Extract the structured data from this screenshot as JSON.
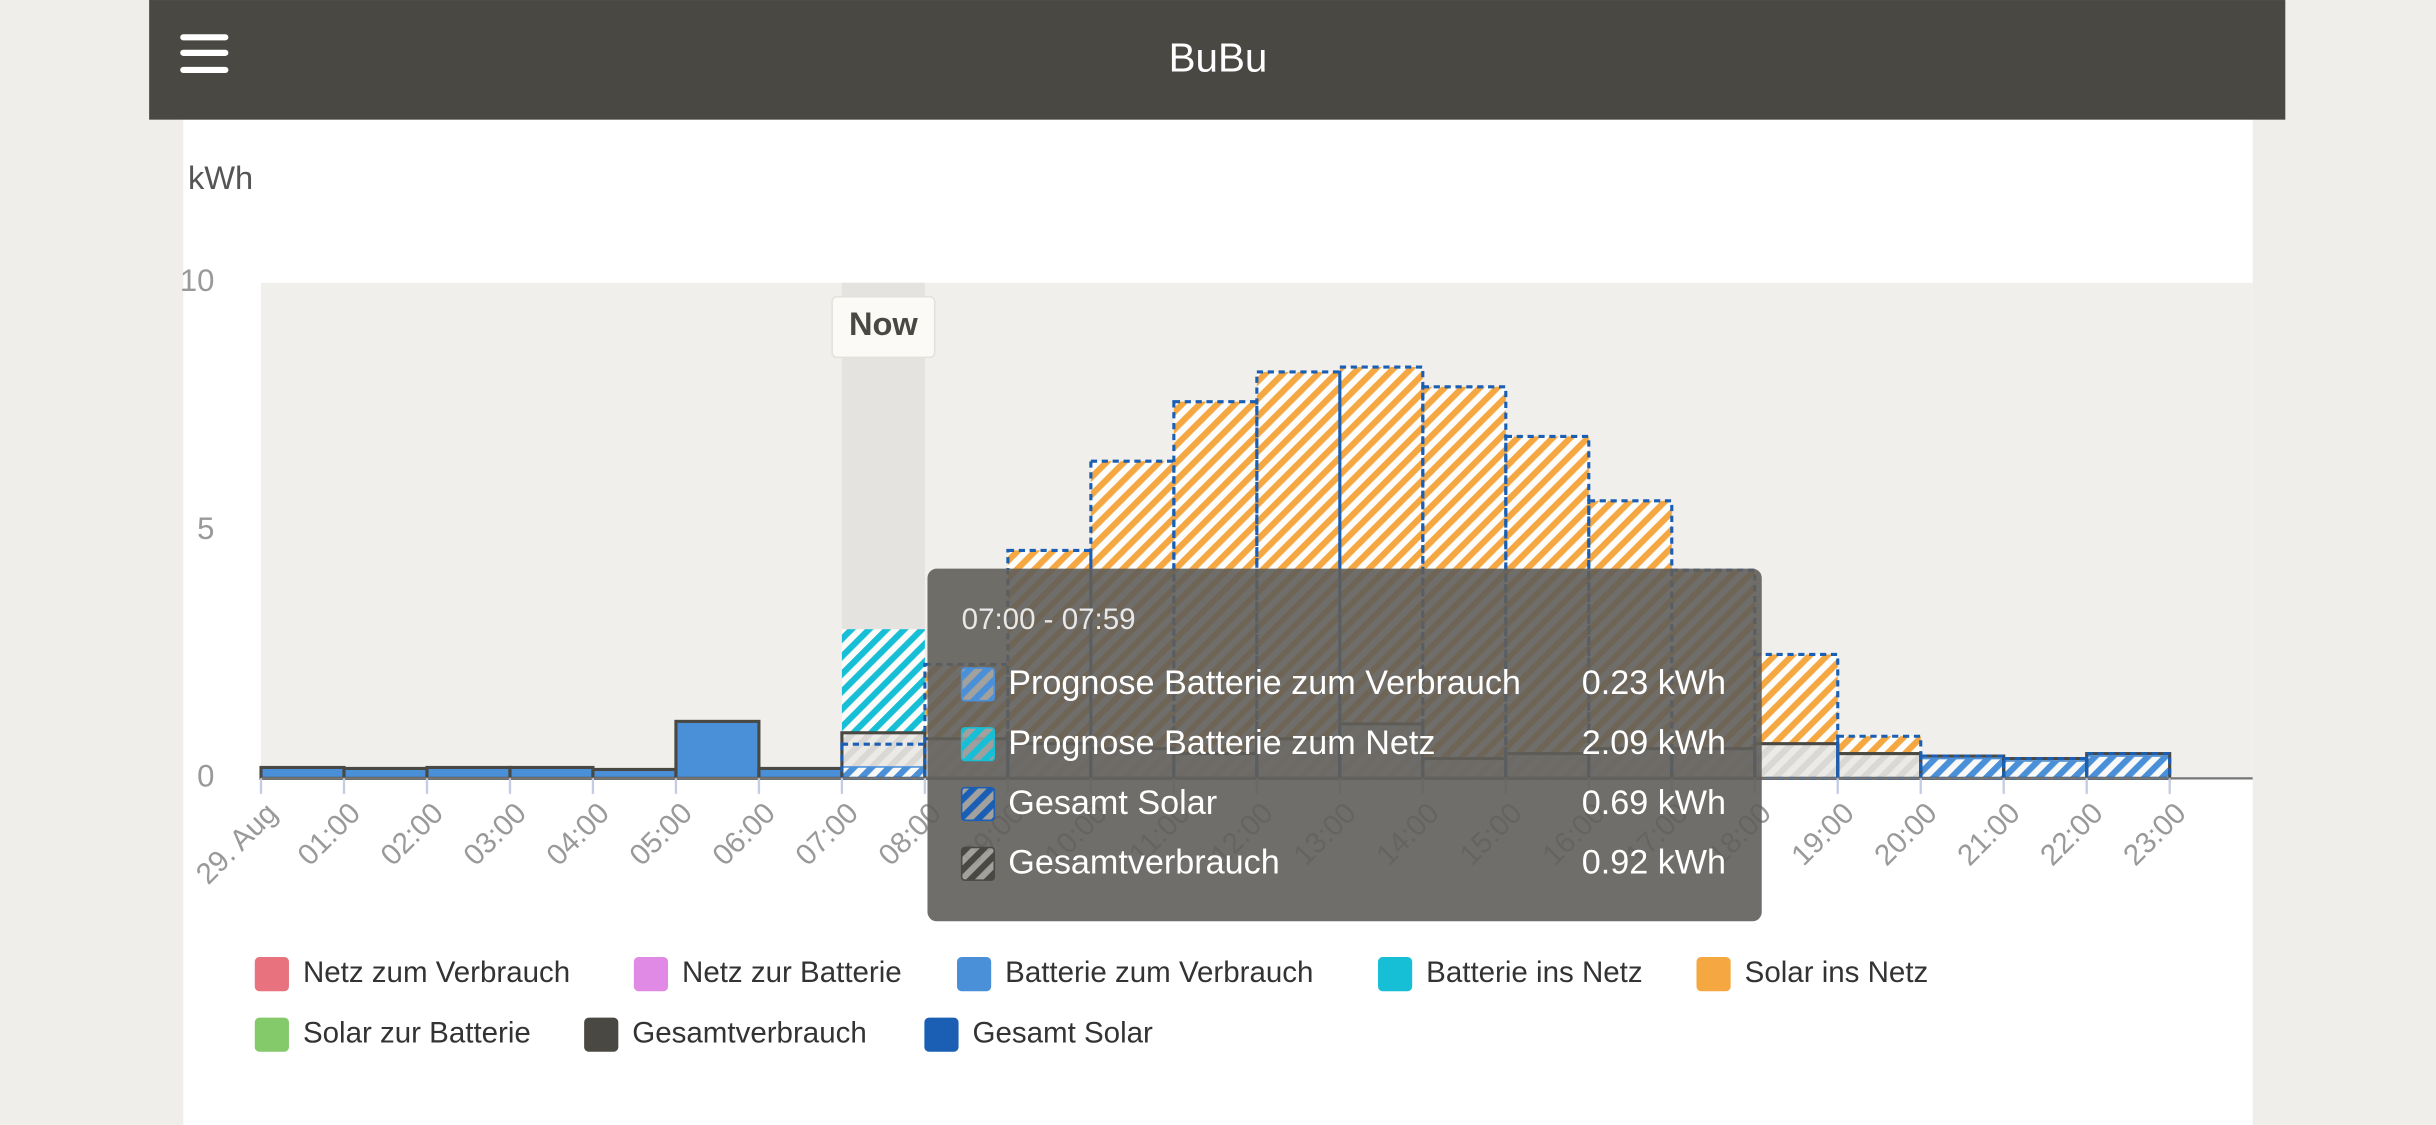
{
  "header": {
    "title": "BuBu"
  },
  "chart_data": {
    "type": "bar",
    "y_label": "kWh",
    "categories": [
      "29. Aug",
      "01:00",
      "02:00",
      "03:00",
      "04:00",
      "05:00",
      "06:00",
      "07:00",
      "08:00",
      "09:00",
      "10:00",
      "11:00",
      "12:00",
      "13:00",
      "14:00",
      "15:00",
      "16:00",
      "17:00",
      "18:00",
      "19:00",
      "20:00",
      "21:00",
      "22:00",
      "23:00"
    ],
    "ylim": [
      0,
      10
    ],
    "yticks": [
      0,
      5,
      10
    ],
    "now": {
      "label": "Now",
      "index": 7
    },
    "series": [
      {
        "name": "Netz zum Verbrauch",
        "color": "#e8737f",
        "draw": "bar",
        "values": [
          null,
          null,
          null,
          null,
          null,
          null,
          null,
          null,
          null,
          null,
          null,
          null,
          null,
          null,
          null,
          null,
          null,
          null,
          null,
          null,
          null,
          null,
          null,
          null
        ]
      },
      {
        "name": "Netz zur Batterie",
        "color": "#e08ae6",
        "draw": "bar",
        "values": [
          null,
          null,
          null,
          null,
          null,
          null,
          null,
          null,
          null,
          null,
          null,
          null,
          null,
          null,
          null,
          null,
          null,
          null,
          null,
          null,
          null,
          null,
          null,
          null
        ]
      },
      {
        "name": "Batterie zum Verbrauch",
        "color": "#4a90d9",
        "draw": "bar",
        "values": [
          0.22,
          0.2,
          0.22,
          0.22,
          0.18,
          1.15,
          0.2,
          0.23,
          null,
          null,
          null,
          null,
          null,
          null,
          null,
          null,
          null,
          null,
          null,
          null,
          0.4,
          0.35,
          0.45,
          null
        ]
      },
      {
        "name": "Batterie ins Netz",
        "color": "#17bfd6",
        "draw": "stacked",
        "values": [
          null,
          null,
          null,
          null,
          null,
          null,
          null,
          2.09,
          null,
          null,
          null,
          null,
          null,
          null,
          null,
          null,
          null,
          null,
          null,
          null,
          null,
          null,
          null,
          null
        ]
      },
      {
        "name": "Solar ins Netz",
        "color": "#f5a742",
        "draw": "stacked",
        "values": [
          null,
          null,
          null,
          null,
          null,
          null,
          null,
          null,
          1.5,
          3.9,
          5.8,
          7.1,
          7.4,
          7.2,
          7.5,
          6.4,
          5.0,
          3.6,
          1.8,
          0.35,
          null,
          null,
          null,
          null
        ]
      },
      {
        "name": "Solar zur Batterie",
        "color": "#84c96a",
        "draw": "bar",
        "values": [
          null,
          null,
          null,
          null,
          null,
          null,
          null,
          null,
          null,
          null,
          null,
          null,
          null,
          null,
          null,
          null,
          null,
          null,
          null,
          null,
          null,
          null,
          null,
          null
        ]
      },
      {
        "name": "Gesamtverbrauch",
        "color": "#4a4843",
        "draw": "outline",
        "values": [
          0.22,
          0.2,
          0.22,
          0.22,
          0.18,
          1.15,
          0.2,
          0.92,
          0.8,
          0.7,
          0.6,
          0.5,
          0.8,
          1.1,
          0.4,
          0.5,
          0.6,
          0.6,
          0.7,
          0.5,
          0.45,
          0.4,
          0.5,
          null
        ]
      },
      {
        "name": "Gesamt Solar",
        "color": "#1a5fb4",
        "draw": "dashed-outline",
        "values": [
          null,
          null,
          null,
          null,
          null,
          null,
          null,
          0.69,
          2.3,
          4.6,
          6.4,
          7.6,
          8.2,
          8.3,
          7.9,
          6.9,
          5.6,
          4.2,
          2.5,
          0.85,
          0.45,
          0.4,
          0.5,
          null
        ]
      }
    ],
    "tooltip": {
      "title": "07:00 - 07:59",
      "items": [
        {
          "label": "Prognose Batterie zum Verbrauch",
          "value": 0.23,
          "value_label": "0.23 kWh"
        },
        {
          "label": "Prognose Batterie zum Netz",
          "value": 2.09,
          "value_label": "2.09 kWh"
        },
        {
          "label": "Gesamt Solar",
          "value": 0.69,
          "value_label": "0.69 kWh"
        },
        {
          "label": "Gesamtverbrauch",
          "value": 0.92,
          "value_label": "0.92 kWh"
        }
      ]
    }
  }
}
